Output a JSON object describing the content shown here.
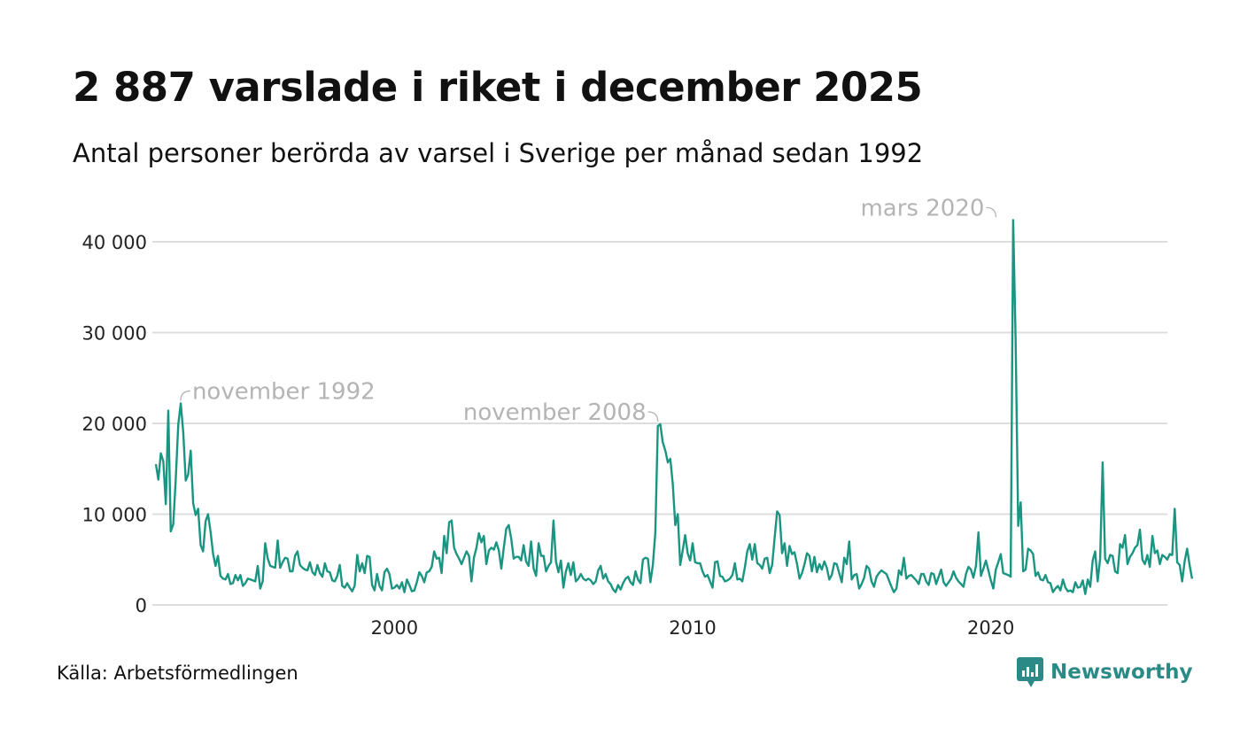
{
  "header": {
    "title": "2 887 varslade i riket i december 2025",
    "subtitle": "Antal personer berörda av varsel i Sverige per månad sedan 1992"
  },
  "footer": {
    "source": "Källa: Arbetsförmedlingen",
    "brand": "Newsworthy"
  },
  "colors": {
    "line": "#1a9582",
    "grid": "#dddddd",
    "annotation": "#b4b4b4",
    "brand": "#2b8a86"
  },
  "chart_data": {
    "type": "line",
    "title": "2 887 varslade i riket i december 2025",
    "subtitle": "Antal personer berörda av varsel i Sverige per månad sedan 1992",
    "xlabel": "",
    "ylabel": "",
    "start": "1992-01",
    "xlim": [
      1992.0,
      2025.92
    ],
    "ylim": [
      0,
      44000
    ],
    "x_ticks": [
      2000,
      2010,
      2020
    ],
    "x_tick_labels": [
      "2000",
      "2010",
      "2020"
    ],
    "y_ticks": [
      0,
      10000,
      20000,
      30000,
      40000
    ],
    "y_tick_labels": [
      "0",
      "10 000",
      "20 000",
      "30 000",
      "40 000"
    ],
    "grid": true,
    "annotations": [
      {
        "label": "november 1992",
        "year": 1992.83,
        "value": 22200,
        "side": "right"
      },
      {
        "label": "november 2008",
        "year": 2008.83,
        "value": 19900,
        "side": "left"
      },
      {
        "label": "mars 2020",
        "year": 2020.17,
        "value": 42400,
        "side": "left"
      }
    ],
    "series": [
      {
        "name": "Antal personer berörda av varsel",
        "values": [
          15500,
          13800,
          16700,
          15800,
          11100,
          21400,
          8100,
          8900,
          13800,
          19900,
          22200,
          19000,
          13700,
          14400,
          17000,
          11200,
          9900,
          10600,
          6600,
          5900,
          9200,
          10000,
          8100,
          5700,
          4300,
          5400,
          3200,
          2900,
          2800,
          3400,
          2300,
          2400,
          3300,
          2700,
          3300,
          2100,
          2400,
          2900,
          2800,
          2700,
          2600,
          4300,
          1800,
          2600,
          6800,
          5100,
          4300,
          4200,
          4100,
          7100,
          4100,
          4700,
          5200,
          5100,
          3700,
          3700,
          5400,
          5900,
          4400,
          4100,
          3900,
          3800,
          4700,
          3600,
          3300,
          4400,
          3500,
          3100,
          4600,
          3700,
          3600,
          2700,
          2600,
          3200,
          4400,
          2100,
          1900,
          2400,
          1900,
          1500,
          2100,
          5500,
          3700,
          4600,
          3500,
          5400,
          5300,
          2200,
          1600,
          3400,
          2100,
          1600,
          3600,
          4000,
          3400,
          1800,
          1900,
          2200,
          1800,
          2500,
          1400,
          2800,
          2200,
          1500,
          1600,
          2500,
          3600,
          3200,
          2500,
          3600,
          3700,
          4200,
          5900,
          5100,
          5200,
          3500,
          7600,
          5700,
          9100,
          9300,
          6300,
          5600,
          5100,
          4500,
          5200,
          5900,
          5400,
          2600,
          5200,
          6300,
          7900,
          6900,
          7600,
          4500,
          6000,
          6300,
          6100,
          6900,
          6000,
          4000,
          6300,
          8400,
          8800,
          7300,
          5100,
          5300,
          5300,
          4900,
          6600,
          4800,
          4300,
          7000,
          4000,
          3200,
          6800,
          5400,
          5400,
          3700,
          4300,
          4700,
          9300,
          4800,
          3600,
          4900,
          1900,
          3700,
          4600,
          3300,
          4700,
          2600,
          2900,
          3400,
          2900,
          2700,
          2900,
          2700,
          2300,
          2600,
          3800,
          4300,
          2900,
          3400,
          2600,
          2300,
          1700,
          1400,
          2200,
          1700,
          2400,
          2900,
          3100,
          2500,
          2200,
          3700,
          2800,
          2400,
          5000,
          5200,
          5100,
          2500,
          4400,
          8000,
          19700,
          19900,
          17900,
          17000,
          15700,
          16100,
          13300,
          8800,
          10000,
          4400,
          6000,
          7700,
          5700,
          4900,
          6800,
          4700,
          4600,
          4600,
          3700,
          3100,
          3300,
          2600,
          1900,
          4700,
          4800,
          3200,
          3100,
          2600,
          2700,
          2900,
          3300,
          4600,
          2800,
          2900,
          2600,
          4100,
          5900,
          6700,
          5000,
          6700,
          4600,
          4400,
          4000,
          5100,
          5200,
          3500,
          4400,
          7400,
          10300,
          9900,
          5700,
          6800,
          4300,
          6500,
          5600,
          5800,
          4500,
          2900,
          3500,
          4500,
          5700,
          5400,
          3700,
          5300,
          3600,
          4500,
          3900,
          4800,
          4100,
          2800,
          3300,
          4600,
          4500,
          3500,
          2500,
          5200,
          4500,
          7000,
          2800,
          3300,
          3400,
          1800,
          2300,
          3000,
          4300,
          4000,
          2600,
          2000,
          3100,
          3500,
          3800,
          3600,
          3400,
          2700,
          2000,
          1400,
          1800,
          3800,
          3300,
          5200,
          2900,
          3200,
          3300,
          3000,
          2700,
          2300,
          3400,
          3400,
          2600,
          2200,
          3500,
          3400,
          2300,
          3100,
          3900,
          2500,
          2100,
          2500,
          2900,
          3700,
          3000,
          2600,
          2300,
          2000,
          3400,
          4200,
          3900,
          3000,
          4300,
          8000,
          3200,
          4000,
          4900,
          3800,
          2700,
          1800,
          3900,
          4700,
          5600,
          3500,
          3400,
          3300,
          3100,
          42400,
          29000,
          8700,
          11300,
          3700,
          3900,
          6200,
          6000,
          5600,
          3200,
          3600,
          2800,
          2700,
          3300,
          2500,
          2400,
          1400,
          1800,
          2100,
          1600,
          2800,
          1900,
          1500,
          1600,
          1400,
          2500,
          1900,
          2000,
          2700,
          1200,
          2800,
          2000,
          4900,
          5900,
          2600,
          5100,
          15700,
          5100,
          4600,
          5500,
          5400,
          3700,
          3500,
          6700,
          6300,
          7700,
          4500,
          5300,
          5700,
          6300,
          6600,
          8300,
          5000,
          4500,
          5500,
          4200,
          7600,
          5700,
          6000,
          4500,
          5500,
          5300,
          5000,
          5600,
          5500,
          10600,
          4700,
          4400,
          2600,
          4800,
          6200,
          4400,
          2887
        ]
      }
    ]
  }
}
